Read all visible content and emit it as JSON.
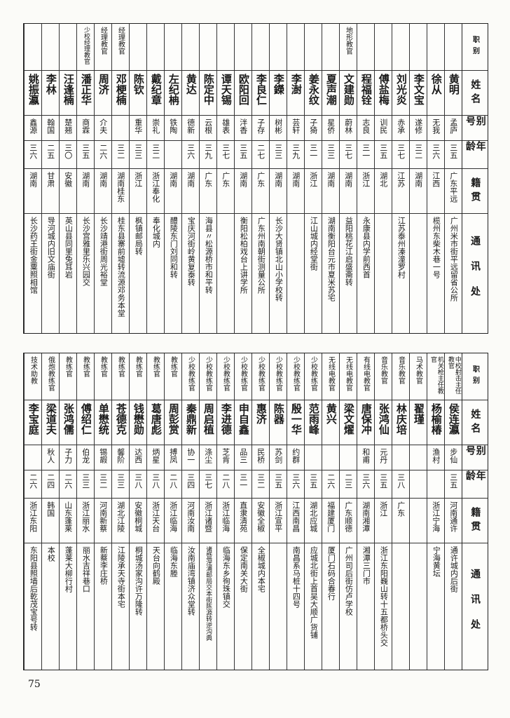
{
  "headers": {
    "title": "职别",
    "name": "姓名",
    "alias": "别号",
    "age": "年龄",
    "origin": "籍贯",
    "address": "通讯处"
  },
  "top_table": [
    {
      "title": "",
      "name": "黄明",
      "alias": "孟庐",
      "age": "三五",
      "origin": "广东平远",
      "address": "广州米市街平远留省公所"
    },
    {
      "title": "",
      "name": "徐从",
      "alias": "无我",
      "age": "三六",
      "origin": "江西",
      "address": "榄州东柴木巷一号"
    },
    {
      "title": "",
      "name": "李文宝",
      "alias": "遂修",
      "age": "三二",
      "origin": "湖南",
      "address": ""
    },
    {
      "title": "",
      "name": "刘光炎",
      "alias": "赤承",
      "age": "三七",
      "origin": "江苏",
      "address": "江苏泰州溱潼罗村"
    },
    {
      "title": "",
      "name": "傅盐梅",
      "alias": "训民",
      "age": "三五",
      "origin": "湖北",
      "address": ""
    },
    {
      "title": "",
      "name": "程福铨",
      "alias": "志良",
      "age": "三一",
      "origin": "浙江",
      "address": "永康县内学前西首"
    },
    {
      "title": "地形教官",
      "name": "文建勋",
      "alias": "蔚林",
      "age": "三七",
      "origin": "湖南",
      "address": "益阳桃花江启盛斋转"
    },
    {
      "title": "",
      "name": "夏声潮",
      "alias": "星侨",
      "age": "三三",
      "origin": "湖南",
      "address": "湖南衡阳台元市夏米苏宅"
    },
    {
      "title": "",
      "name": "姜永纹",
      "alias": "子猗",
      "age": "三一",
      "origin": "浙江",
      "address": "江山城内经堂街"
    },
    {
      "title": "",
      "name": "李澍",
      "alias": "芸轩",
      "age": "三九",
      "origin": "湖南",
      "address": ""
    },
    {
      "title": "",
      "name": "李鑅",
      "alias": "树彬",
      "age": "三三",
      "origin": "湖南",
      "address": "长沙大贤镇北山小学校转"
    },
    {
      "title": "",
      "name": "李良仁",
      "alias": "子存",
      "age": "二七",
      "origin": "广东",
      "address": "广东州南朝街测量公所"
    },
    {
      "title": "",
      "name": "欧阳回",
      "alias": "泮香",
      "age": "三五",
      "origin": "湖南",
      "address": "衡阳松柏戏台上讲学所"
    },
    {
      "title": "",
      "name": "谭天锡",
      "alias": "雄表",
      "age": "三七",
      "origin": "广东",
      "address": ""
    },
    {
      "title": "",
      "name": "陈定中",
      "alias": "云根",
      "age": "三九",
      "origin": "广东",
      "address": "海县〃松源桥市和平转"
    },
    {
      "title": "",
      "name": "黄达",
      "alias": "德新",
      "age": "三六",
      "origin": "湖南",
      "address": "宝庆河街岭黄复泰转"
    },
    {
      "title": "",
      "name": "左纪柟",
      "alias": "铁陶",
      "age": "",
      "origin": "湖南",
      "address": "醴陵东门刘同和转"
    },
    {
      "title": "",
      "name": "戴纪章",
      "alias": "崇礼",
      "age": "三二",
      "origin": "浙江奉化",
      "address": "奉化城内"
    },
    {
      "title": "",
      "name": "陈钦",
      "alias": "重华",
      "age": "三三",
      "origin": "浙江",
      "address": "枫镇邮局转"
    },
    {
      "title": "经理教官",
      "name": "邓梗楠",
      "alias": "",
      "age": "三二",
      "origin": "湖南桂东",
      "address": "桂东县寨前墟转流源邓务本堂"
    },
    {
      "title": "经理教官",
      "name": "周济",
      "alias": "介夫",
      "age": "二六",
      "origin": "湖南",
      "address": "长沙靖港街周光裕堂"
    },
    {
      "title": "少校经理教官",
      "name": "潘正华",
      "alias": "商霖",
      "age": "三五",
      "origin": "湖南",
      "address": "长沙宫雅里乐兴园交"
    },
    {
      "title": "",
      "name": "汪逢楠",
      "alias": "楚翘",
      "age": "三〇",
      "origin": "安徽",
      "address": "英山县同里兔耳岩"
    },
    {
      "title": "",
      "name": "李林",
      "alias": "翰国",
      "age": "二五",
      "origin": "甘肃",
      "address": "导河城内旧文庙街"
    },
    {
      "title": "",
      "name": "姚振瀛",
      "alias": "鑫源",
      "age": "三六",
      "origin": "湖南",
      "address": "长沙药王街金粟照相馆"
    }
  ],
  "bottom_table": [
    {
      "title": "中校射击主任教官",
      "name": "侯连瀛",
      "alias": "步仙",
      "age": "三五",
      "origin": "河南通许",
      "address": "通许城内后街"
    },
    {
      "title": "机关枪主任教官",
      "name": "杨榆椿",
      "alias": "渔村",
      "age": "",
      "origin": "浙江宁海",
      "address": "宁海黄坛"
    },
    {
      "title": "马术教官",
      "name": "翟瑾",
      "alias": "",
      "age": "",
      "origin": "",
      "address": ""
    },
    {
      "title": "音乐教官",
      "name": "林庆培",
      "alias": "",
      "age": "三八",
      "origin": "广东",
      "address": ""
    },
    {
      "title": "音乐教官",
      "name": "张鸿仙",
      "alias": "元丹",
      "age": "三五",
      "origin": "浙江",
      "address": "浙江东阳巍山转十五都桥头交"
    },
    {
      "title": "有线电教官",
      "name": "唐保冲",
      "alias": "和甫",
      "age": "三六",
      "origin": "湖南湘潭",
      "address": "湘潭三门市"
    },
    {
      "title": "无线电教官",
      "name": "梁文燿",
      "alias": "",
      "age": "二三",
      "origin": "广东顺德",
      "address": "广州司后街仿卢学校"
    },
    {
      "title": "无线电教官",
      "name": "黄兴",
      "alias": "",
      "age": "二六",
      "origin": "福建厦门",
      "address": "厦门石码合春行"
    },
    {
      "title": "少校教练官",
      "name": "范雨峰",
      "alias": "",
      "age": "三五",
      "origin": "湖北应城",
      "address": "应城北街上首吴大顺广货铺"
    },
    {
      "title": "少校教练官",
      "name": "殷一华",
      "alias": "约群",
      "age": "三六",
      "origin": "江西南昌",
      "address": "南昌系马桩十四号"
    },
    {
      "title": "少校教练官",
      "name": "陈器",
      "alias": "苏剑",
      "age": "三五",
      "origin": "浙江宣平",
      "address": ""
    },
    {
      "title": "少校教练官",
      "name": "惠济",
      "alias": "民桥",
      "age": "三二",
      "origin": "安徽全椒",
      "address": "全椒城内本宅"
    },
    {
      "title": "少校教练官",
      "name": "申自鑫",
      "alias": "品三",
      "age": "三一",
      "origin": "直隶清苑",
      "address": "保定南关大街"
    },
    {
      "title": "少校教练官",
      "name": "李进德",
      "alias": "芝肯",
      "age": "二八",
      "origin": "浙江临海",
      "address": "临海东乡徇珠镇交"
    },
    {
      "title": "少校教练官",
      "name": "周启植",
      "alias": "涤尘",
      "age": "三七",
      "origin": "浙江诸暨",
      "address": "诸暨涅浦邮局交本街陈源转逆沟典"
    },
    {
      "title": "少校教练官",
      "name": "秦鼎新",
      "alias": "协一",
      "age": "三四",
      "origin": "河南汝南",
      "address": "汝南庙湾镇济众堂转"
    },
    {
      "title": "教练官",
      "name": "周彭赏",
      "alias": "搏凤",
      "age": "二八",
      "origin": "浙江临海",
      "address": "临海东塍"
    },
    {
      "title": "教练官",
      "name": "葛唐彪",
      "alias": "炳星",
      "age": "三八",
      "origin": "浙江天台",
      "address": "天台向鹤殿"
    },
    {
      "title": "教练官",
      "name": "钱懋勋",
      "alias": "达西",
      "age": "三八",
      "origin": "安徽桐城",
      "address": "桐城汤家沟许万隆转"
    },
    {
      "title": "教练官",
      "name": "苍德克",
      "alias": "馨阶",
      "age": "三三",
      "origin": "湖北江陵",
      "address": "江陵承天寺街本宅"
    },
    {
      "title": "教练官",
      "name": "单懋统",
      "alias": "锡嘏",
      "age": "三二",
      "origin": "河南新蔡",
      "address": "新蔡李庄桥"
    },
    {
      "title": "教练官",
      "name": "傅绍仁",
      "alias": "伯龙",
      "age": "三三",
      "origin": "浙江丽水",
      "address": "丽水吉祥巷口"
    },
    {
      "title": "教练官",
      "name": "张鸿儒",
      "alias": "子力",
      "age": "二六",
      "origin": "山东蓬莱",
      "address": "蓬莱大柳行村"
    },
    {
      "title": "俄炮教练官",
      "name": "梁道夫",
      "alias": "秋人",
      "age": "二四",
      "origin": "韩国",
      "address": "本校"
    },
    {
      "title": "技术助教",
      "name": "李宝庭",
      "alias": "",
      "age": "二六",
      "origin": "浙江东阳",
      "address": "东阳县照墙后乾茂宝号转"
    }
  ],
  "page_number": "75"
}
